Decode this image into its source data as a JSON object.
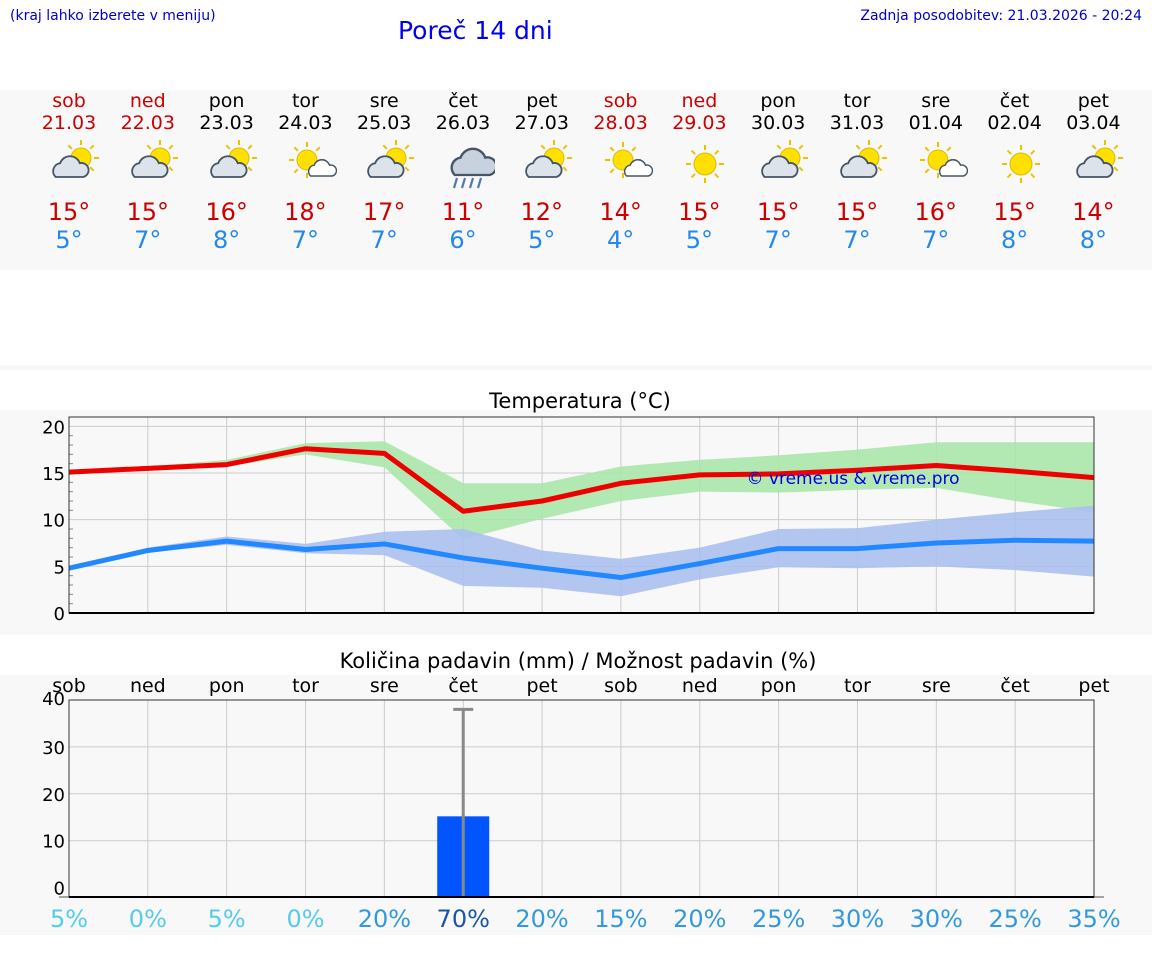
{
  "header": {
    "note": "(kraj lahko izberete v meniju)",
    "title": "Poreč 14 dni",
    "updated": "Zadnja posodobitev: 21.03.2026 - 20:24"
  },
  "days": [
    {
      "name": "sob",
      "date": "21.03",
      "weekend": true,
      "icon": "partly-cloudy-icon",
      "max": "15°",
      "min": "5°"
    },
    {
      "name": "ned",
      "date": "22.03",
      "weekend": true,
      "icon": "partly-cloudy-icon",
      "max": "15°",
      "min": "7°"
    },
    {
      "name": "pon",
      "date": "23.03",
      "weekend": false,
      "icon": "partly-cloudy-icon",
      "max": "16°",
      "min": "8°"
    },
    {
      "name": "tor",
      "date": "24.03",
      "weekend": false,
      "icon": "mostly-sunny-icon",
      "max": "18°",
      "min": "7°"
    },
    {
      "name": "sre",
      "date": "25.03",
      "weekend": false,
      "icon": "partly-cloudy-icon",
      "max": "17°",
      "min": "7°"
    },
    {
      "name": "čet",
      "date": "26.03",
      "weekend": false,
      "icon": "rain-icon",
      "max": "11°",
      "min": "6°"
    },
    {
      "name": "pet",
      "date": "27.03",
      "weekend": false,
      "icon": "partly-cloudy-icon",
      "max": "12°",
      "min": "5°"
    },
    {
      "name": "sob",
      "date": "28.03",
      "weekend": true,
      "icon": "mostly-sunny-icon",
      "max": "14°",
      "min": "4°"
    },
    {
      "name": "ned",
      "date": "29.03",
      "weekend": true,
      "icon": "sunny-icon",
      "max": "15°",
      "min": "5°"
    },
    {
      "name": "pon",
      "date": "30.03",
      "weekend": false,
      "icon": "partly-cloudy-icon",
      "max": "15°",
      "min": "7°"
    },
    {
      "name": "tor",
      "date": "31.03",
      "weekend": false,
      "icon": "partly-cloudy-icon",
      "max": "15°",
      "min": "7°"
    },
    {
      "name": "sre",
      "date": "01.04",
      "weekend": false,
      "icon": "mostly-sunny-icon",
      "max": "16°",
      "min": "7°"
    },
    {
      "name": "čet",
      "date": "02.04",
      "weekend": false,
      "icon": "sunny-icon",
      "max": "15°",
      "min": "8°"
    },
    {
      "name": "pet",
      "date": "03.04",
      "weekend": false,
      "icon": "partly-cloudy-icon",
      "max": "14°",
      "min": "8°"
    }
  ],
  "chart_data": [
    {
      "type": "line",
      "title": "Temperatura (°C)",
      "watermark": "© vreme.us & vreme.pro",
      "x": [
        0,
        1,
        2,
        3,
        4,
        5,
        6,
        7,
        8,
        9,
        10,
        11,
        12,
        13
      ],
      "ylim": [
        0,
        21
      ],
      "yticks": [
        0,
        5,
        10,
        15,
        20
      ],
      "series": [
        {
          "name": "max",
          "color": "#ee0000",
          "values": [
            15.1,
            15.5,
            15.9,
            17.6,
            17.1,
            10.9,
            12.0,
            13.9,
            14.8,
            14.9,
            15.3,
            15.8,
            15.2,
            14.5
          ],
          "range_low": [
            15.0,
            15.3,
            15.7,
            17.0,
            15.6,
            7.9,
            10.1,
            12.0,
            13.0,
            12.9,
            13.2,
            13.4,
            12.0,
            10.8
          ],
          "range_high": [
            15.2,
            15.7,
            16.4,
            18.2,
            18.4,
            13.9,
            13.9,
            15.7,
            16.4,
            16.9,
            17.5,
            18.3,
            18.3,
            18.3
          ],
          "range_color": "#aae6aa"
        },
        {
          "name": "min",
          "color": "#2288ff",
          "values": [
            4.8,
            6.7,
            7.7,
            6.8,
            7.4,
            5.9,
            4.8,
            3.8,
            5.3,
            6.9,
            6.9,
            7.5,
            7.8,
            7.7
          ],
          "range_low": [
            4.7,
            6.5,
            7.3,
            6.4,
            6.2,
            2.9,
            2.7,
            1.8,
            3.6,
            4.9,
            4.8,
            5.0,
            4.6,
            3.9
          ],
          "range_high": [
            5.0,
            7.0,
            8.2,
            7.4,
            8.7,
            9.0,
            6.7,
            5.8,
            7.0,
            9.0,
            9.1,
            10.0,
            10.8,
            11.5
          ],
          "range_color": "#aac0ee"
        }
      ]
    },
    {
      "type": "bar",
      "title": "Količina padavin (mm) / Možnost padavin (%)",
      "categories": [
        "sob",
        "ned",
        "pon",
        "tor",
        "sre",
        "čet",
        "pet",
        "sob",
        "ned",
        "pon",
        "tor",
        "sre",
        "čet",
        "pet"
      ],
      "values": [
        0,
        0,
        0,
        0,
        0,
        15.2,
        0,
        0,
        0,
        0,
        0,
        0,
        0,
        0
      ],
      "error_high": [
        0,
        0,
        0,
        0,
        0,
        38,
        0,
        0,
        0,
        0,
        0,
        0,
        0,
        0
      ],
      "ylim": [
        -2,
        40
      ],
      "yticks": [
        0,
        10,
        20,
        30,
        40
      ],
      "bar_color": "#0055ff",
      "probability": [
        "5%",
        "0%",
        "5%",
        "0%",
        "20%",
        "70%",
        "20%",
        "15%",
        "20%",
        "25%",
        "30%",
        "30%",
        "25%",
        "35%"
      ],
      "probability_values": [
        5,
        0,
        5,
        0,
        20,
        70,
        20,
        15,
        20,
        25,
        30,
        30,
        25,
        35
      ]
    }
  ],
  "colors": {
    "weekend": "#cc0000",
    "weekday": "#000000",
    "max": "#cc0000",
    "min": "#2288ee"
  }
}
